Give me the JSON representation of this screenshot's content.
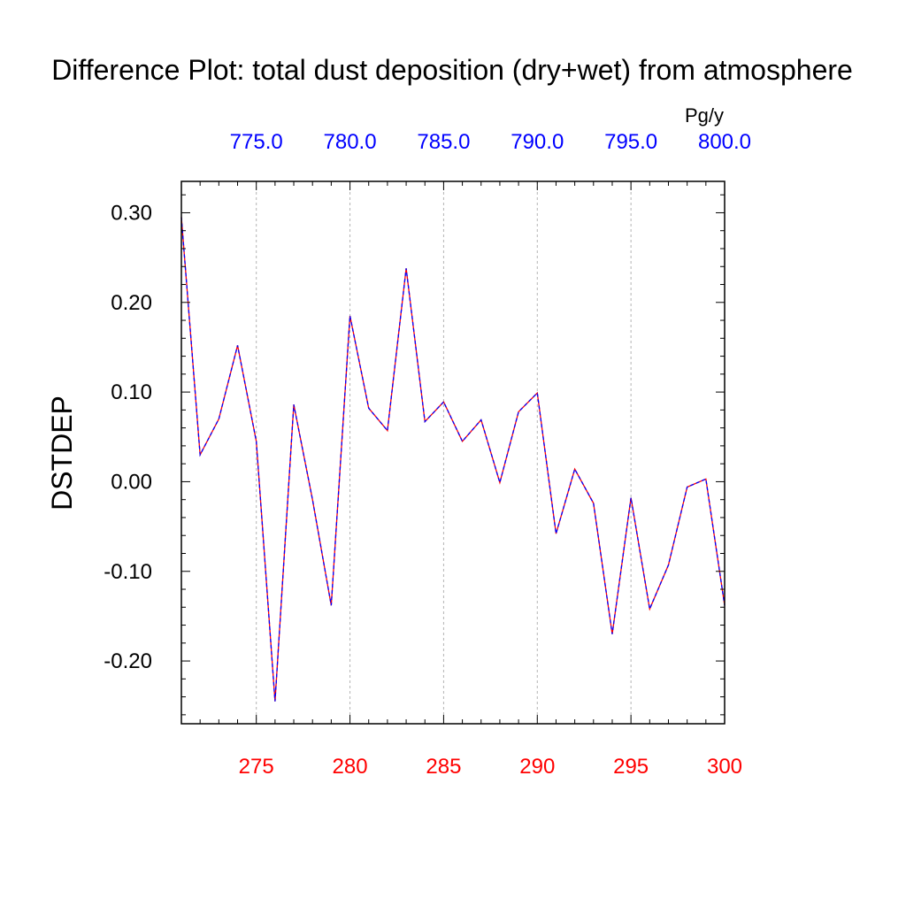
{
  "chart_data": {
    "type": "line",
    "title": "Difference Plot: total dust deposition (dry+wet) from atmosphere",
    "ylabel": "DSTDEP",
    "top_axis_units": "Pg/y",
    "xlim": [
      271,
      300
    ],
    "ylim": [
      -0.27,
      0.335
    ],
    "x_ticks": [
      275,
      280,
      285,
      290,
      295,
      300
    ],
    "x_tick_labels": [
      "275",
      "280",
      "285",
      "290",
      "295",
      "300"
    ],
    "top_ticks": [
      275,
      280,
      285,
      290,
      295,
      300
    ],
    "top_tick_labels": [
      "775.0",
      "780.0",
      "785.0",
      "790.0",
      "795.0",
      "800.0"
    ],
    "y_ticks": [
      0.3,
      0.2,
      0.1,
      0.0,
      -0.1,
      -0.2
    ],
    "y_tick_labels": [
      "0.30",
      "0.20",
      "0.10",
      "0.00",
      "-0.10",
      "-0.20"
    ],
    "vertical_grid": true,
    "colors": {
      "bottom_tick_labels": "#ff0000",
      "top_tick_labels": "#0000ff",
      "line_solid": "#ff0000",
      "line_dashed": "#0000ff",
      "grid": "#b4b4b4",
      "axis": "#000000"
    },
    "x": [
      271,
      272,
      273,
      274,
      275,
      276,
      277,
      278,
      279,
      280,
      281,
      282,
      283,
      284,
      285,
      286,
      287,
      288,
      289,
      290,
      291,
      292,
      293,
      294,
      295,
      296,
      297,
      298,
      299,
      300
    ],
    "series": [
      {
        "values": [
          0.295,
          0.03,
          0.07,
          0.152,
          0.045,
          -0.245,
          0.086,
          -0.02,
          -0.138,
          0.185,
          0.082,
          0.057,
          0.238,
          0.067,
          0.089,
          0.045,
          0.069,
          -0.001,
          0.078,
          0.099,
          -0.058,
          0.014,
          -0.024,
          -0.17,
          -0.018,
          -0.142,
          -0.093,
          -0.006,
          0.003,
          -0.138
        ]
      }
    ]
  }
}
